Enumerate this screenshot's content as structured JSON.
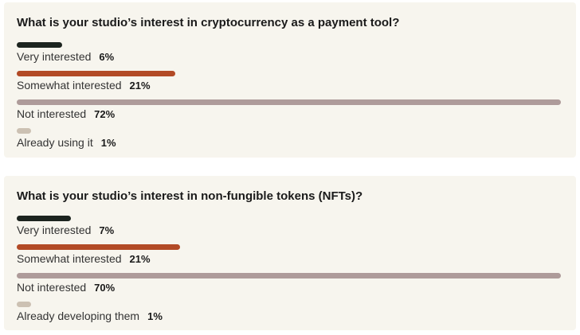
{
  "chart_data": [
    {
      "type": "bar",
      "orientation": "horizontal",
      "title": "What is your studio’s interest in cryptocurrency as a payment tool?",
      "xlim": [
        0,
        72
      ],
      "categories": [
        "Very interested",
        "Somewhat interested",
        "Not interested",
        "Already using it"
      ],
      "values": [
        6,
        21,
        72,
        1
      ],
      "value_labels": [
        "6%",
        "21%",
        "72%",
        "1%"
      ],
      "colors": [
        "#1c241f",
        "#b24a26",
        "#ae9b9a",
        "#ccc1b3"
      ]
    },
    {
      "type": "bar",
      "orientation": "horizontal",
      "title": "What is your studio’s interest in non-fungible tokens (NFTs)?",
      "xlim": [
        0,
        70
      ],
      "categories": [
        "Very interested",
        "Somewhat interested",
        "Not interested",
        "Already developing them"
      ],
      "values": [
        7,
        21,
        70,
        1
      ],
      "value_labels": [
        "7%",
        "21%",
        "70%",
        "1%"
      ],
      "colors": [
        "#1c241f",
        "#b24a26",
        "#ae9b9a",
        "#ccc1b3"
      ]
    }
  ]
}
